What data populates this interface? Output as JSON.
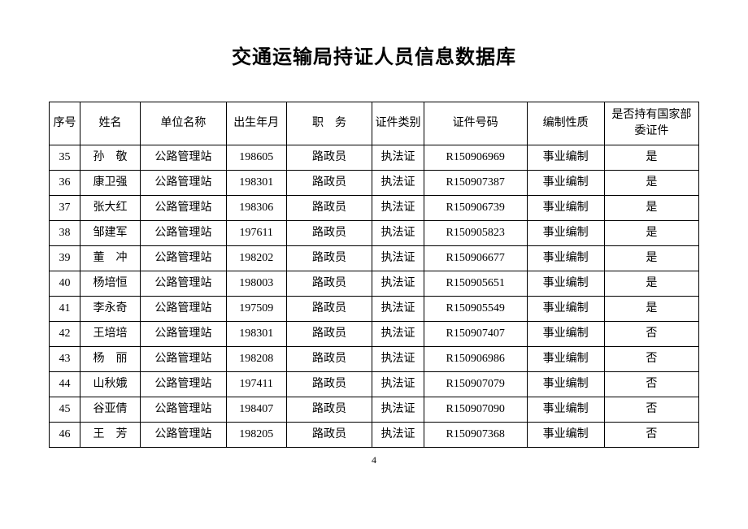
{
  "title": "交通运输局持证人员信息数据库",
  "page_number": "4",
  "columns": {
    "seq": "序号",
    "name": "姓名",
    "unit": "单位名称",
    "birth": "出生年月",
    "duty": "职　务",
    "cert_type": "证件类别",
    "cert_num": "证件号码",
    "formation": "编制性质",
    "national": "是否持有国家部委证件"
  },
  "rows": [
    {
      "seq": "35",
      "name": "孙　敬",
      "unit": "公路管理站",
      "birth": "198605",
      "duty": "路政员",
      "cert_type": "执法证",
      "cert_num": "R150906969",
      "formation": "事业编制",
      "national": "是"
    },
    {
      "seq": "36",
      "name": "康卫强",
      "unit": "公路管理站",
      "birth": "198301",
      "duty": "路政员",
      "cert_type": "执法证",
      "cert_num": "R150907387",
      "formation": "事业编制",
      "national": "是"
    },
    {
      "seq": "37",
      "name": "张大红",
      "unit": "公路管理站",
      "birth": "198306",
      "duty": "路政员",
      "cert_type": "执法证",
      "cert_num": "R150906739",
      "formation": "事业编制",
      "national": "是"
    },
    {
      "seq": "38",
      "name": "邹建军",
      "unit": "公路管理站",
      "birth": "197611",
      "duty": "路政员",
      "cert_type": "执法证",
      "cert_num": "R150905823",
      "formation": "事业编制",
      "national": "是"
    },
    {
      "seq": "39",
      "name": "董　冲",
      "unit": "公路管理站",
      "birth": "198202",
      "duty": "路政员",
      "cert_type": "执法证",
      "cert_num": "R150906677",
      "formation": "事业编制",
      "national": "是"
    },
    {
      "seq": "40",
      "name": "杨培恒",
      "unit": "公路管理站",
      "birth": "198003",
      "duty": "路政员",
      "cert_type": "执法证",
      "cert_num": "R150905651",
      "formation": "事业编制",
      "national": "是"
    },
    {
      "seq": "41",
      "name": "李永奇",
      "unit": "公路管理站",
      "birth": "197509",
      "duty": "路政员",
      "cert_type": "执法证",
      "cert_num": "R150905549",
      "formation": "事业编制",
      "national": "是"
    },
    {
      "seq": "42",
      "name": "王培培",
      "unit": "公路管理站",
      "birth": "198301",
      "duty": "路政员",
      "cert_type": "执法证",
      "cert_num": "R150907407",
      "formation": "事业编制",
      "national": "否"
    },
    {
      "seq": "43",
      "name": "杨　丽",
      "unit": "公路管理站",
      "birth": "198208",
      "duty": "路政员",
      "cert_type": "执法证",
      "cert_num": "R150906986",
      "formation": "事业编制",
      "national": "否"
    },
    {
      "seq": "44",
      "name": "山秋娥",
      "unit": "公路管理站",
      "birth": "197411",
      "duty": "路政员",
      "cert_type": "执法证",
      "cert_num": "R150907079",
      "formation": "事业编制",
      "national": "否"
    },
    {
      "seq": "45",
      "name": "谷亚倩",
      "unit": "公路管理站",
      "birth": "198407",
      "duty": "路政员",
      "cert_type": "执法证",
      "cert_num": "R150907090",
      "formation": "事业编制",
      "national": "否"
    },
    {
      "seq": "46",
      "name": "王　芳",
      "unit": "公路管理站",
      "birth": "198205",
      "duty": "路政员",
      "cert_type": "执法证",
      "cert_num": "R150907368",
      "formation": "事业编制",
      "national": "否"
    }
  ],
  "style": {
    "background_color": "#ffffff",
    "border_color": "#000000",
    "title_fontsize": 24,
    "cell_fontsize": 14,
    "font_family": "SimSun"
  }
}
